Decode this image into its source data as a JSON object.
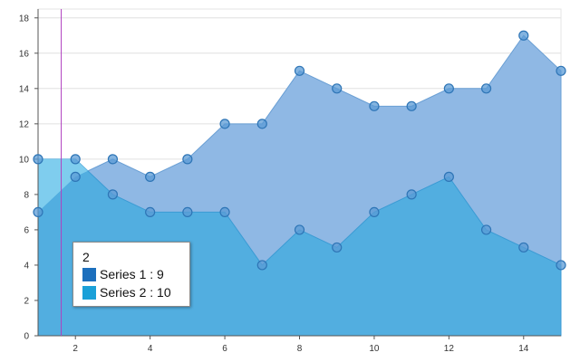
{
  "chart_data": {
    "type": "area",
    "x": [
      1,
      2,
      3,
      4,
      5,
      6,
      7,
      8,
      9,
      10,
      11,
      12,
      13,
      14,
      15
    ],
    "series": [
      {
        "name": "Series 1",
        "values": [
          7,
          9,
          10,
          9,
          10,
          12,
          12,
          15,
          14,
          13,
          13,
          14,
          14,
          17,
          15
        ]
      },
      {
        "name": "Series 2",
        "values": [
          10,
          10,
          8,
          7,
          7,
          7,
          4,
          6,
          5,
          7,
          8,
          9,
          6,
          5,
          4
        ]
      }
    ],
    "xlim": [
      1,
      15
    ],
    "ylim": [
      0,
      18.5
    ],
    "x_ticks": [
      2,
      4,
      6,
      8,
      10,
      12,
      14
    ],
    "y_ticks": [
      0,
      2,
      4,
      6,
      8,
      10,
      12,
      14,
      16,
      18
    ],
    "grid": "horizontal",
    "colors": {
      "series1_fill": "#8fb8e4",
      "series2_fill": "#4aacdf",
      "series2_fill_light": "#7fcdee",
      "marker_fill": "#5b9bd5",
      "marker_stroke": "#2e75b6",
      "crosshair": "#b040c0",
      "swatch1": "#1c6fbd",
      "swatch2": "#1aa0d8"
    },
    "crosshair_x": 1.62,
    "tooltip": {
      "title": "2",
      "rows": [
        "Series 1 : 9",
        "Series 2 : 10"
      ]
    }
  }
}
